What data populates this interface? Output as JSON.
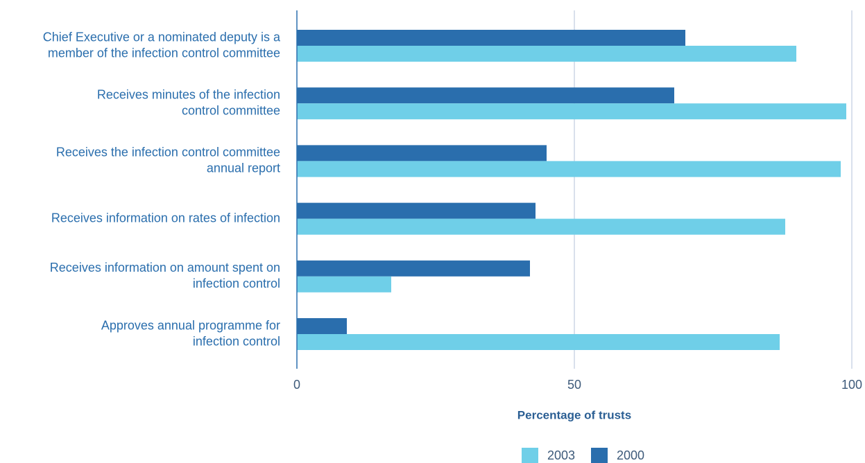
{
  "chart_data": {
    "type": "barh",
    "categories": [
      [
        "Chief Executive or a nominated deputy is a",
        "member of the infection control committee"
      ],
      [
        "Receives minutes of the infection",
        "control committee"
      ],
      [
        "Receives the infection control committee",
        "annual report"
      ],
      [
        "Receives information on rates of infection"
      ],
      [
        "Receives information on amount spent on",
        "infection control"
      ],
      [
        "Approves annual programme for",
        "infection control"
      ]
    ],
    "series": [
      {
        "name": "2003",
        "color": "#6fcfe8",
        "values": [
          90,
          99,
          98,
          88,
          17,
          87
        ]
      },
      {
        "name": "2000",
        "color": "#2a6ead",
        "values": [
          70,
          68,
          45,
          43,
          42,
          9
        ]
      }
    ],
    "xlabel": "Percentage of trusts",
    "xlim": [
      0,
      100
    ],
    "xticks": [
      0,
      50,
      100
    ],
    "grid": true,
    "legend": "bottom"
  }
}
